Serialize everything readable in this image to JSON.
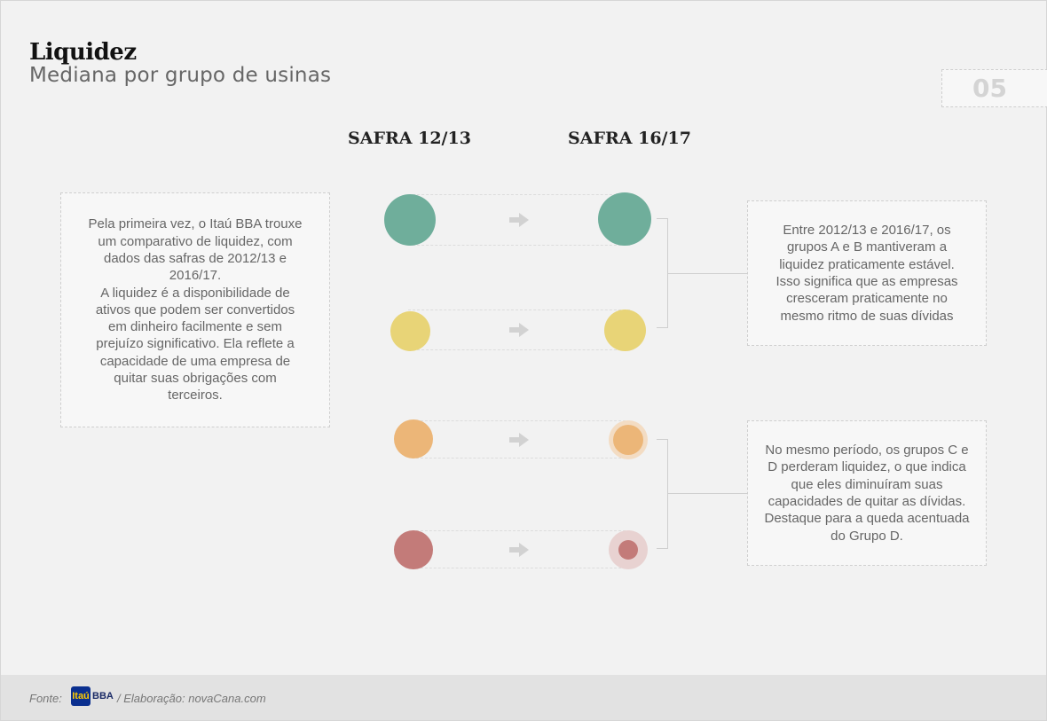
{
  "header": {
    "title": "Liquidez",
    "subtitle": "Mediana por grupo de usinas",
    "page_number": "05"
  },
  "columns": {
    "left": "SAFRA 12/13",
    "right": "SAFRA 16/17"
  },
  "intro_box": {
    "paragraph_1": "Pela primeira vez, o Itaú BBA trouxe um comparativo de liquidez, com dados das safras de 2012/13 e 2016/17.",
    "paragraph_2": "A liquidez é a disponibilidade de ativos que podem ser convertidos em dinheiro facilmente e sem prejuízo significativo. Ela reflete a capacidade de uma empresa de quitar suas obrigações com terceiros."
  },
  "note_ab": "Entre 2012/13 e 2016/17, os grupos A e B mantiveram a liquidez praticamente estável. Isso significa que as empresas cresceram praticamente no mesmo ritmo de suas dívidas",
  "note_cd": "No mesmo período, os grupos C e D perderam liquidez, o que indica que eles diminuíram suas capacidades de quitar as dívidas. Destaque para a queda acentuada do Grupo D.",
  "colors": {
    "group_a": "#6fae9b",
    "group_b": "#e8d477",
    "group_c": "#ecb678",
    "group_d": "#c37b79",
    "arrow": "#d2d2d2"
  },
  "footer": {
    "source_label": "Fonte:",
    "logo_itau": "Itaú",
    "logo_bba": "BBA",
    "credit": "/ Elaboração: novaCana.com"
  }
}
